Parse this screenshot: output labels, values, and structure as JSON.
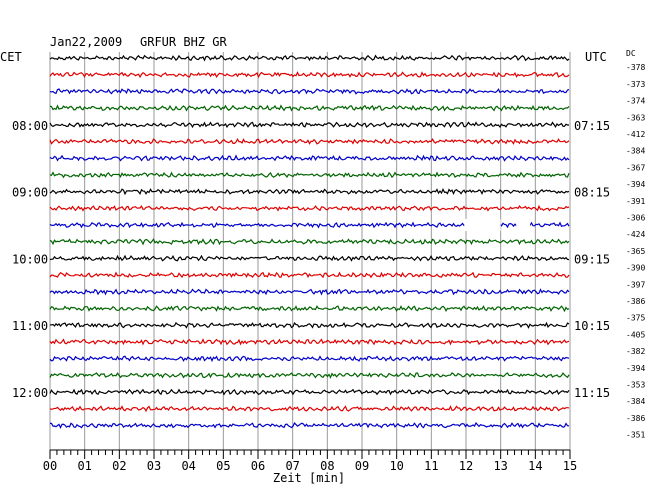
{
  "header": {
    "date": "Jan22,2009",
    "station": "GRFUR BHZ GR",
    "left_zone": "CET",
    "right_zone": "UTC",
    "dc_label": "DC"
  },
  "chart_data": {
    "type": "line",
    "title": "Jan22,2009  GRFUR BHZ GR",
    "xlabel": "Zeit [min]",
    "xlim": [
      0,
      15
    ],
    "x_ticks": [
      "00",
      "01",
      "02",
      "03",
      "04",
      "05",
      "06",
      "07",
      "08",
      "09",
      "10",
      "11",
      "12",
      "13",
      "14",
      "15"
    ],
    "rows_per_hour": 4,
    "row_colors": [
      "#000000",
      "#e00000",
      "#0000c8",
      "#006400"
    ],
    "left_time_labels": [
      {
        "row": 4,
        "text": "08:00"
      },
      {
        "row": 8,
        "text": "09:00"
      },
      {
        "row": 12,
        "text": "10:00"
      },
      {
        "row": 16,
        "text": "11:00"
      },
      {
        "row": 20,
        "text": "12:00"
      }
    ],
    "right_time_labels": [
      {
        "row": 4,
        "text": "07:15"
      },
      {
        "row": 8,
        "text": "08:15"
      },
      {
        "row": 12,
        "text": "09:15"
      },
      {
        "row": 16,
        "text": "10:15"
      },
      {
        "row": 20,
        "text": "11:15"
      }
    ],
    "dc_values": [
      "-378",
      "-373",
      "-374",
      "-363",
      "-412",
      "-384",
      "-367",
      "-394",
      "-391",
      "-306",
      "-424",
      "-365",
      "-390",
      "-397",
      "-386",
      "-375",
      "-405",
      "-382",
      "-394",
      "-353",
      "-384",
      "-386",
      "-351"
    ],
    "trace_gaps": [
      {
        "row": 10,
        "from_min": 11.95,
        "to_min": 13.0
      },
      {
        "row": 10,
        "from_min": 13.45,
        "to_min": 13.85
      }
    ]
  }
}
